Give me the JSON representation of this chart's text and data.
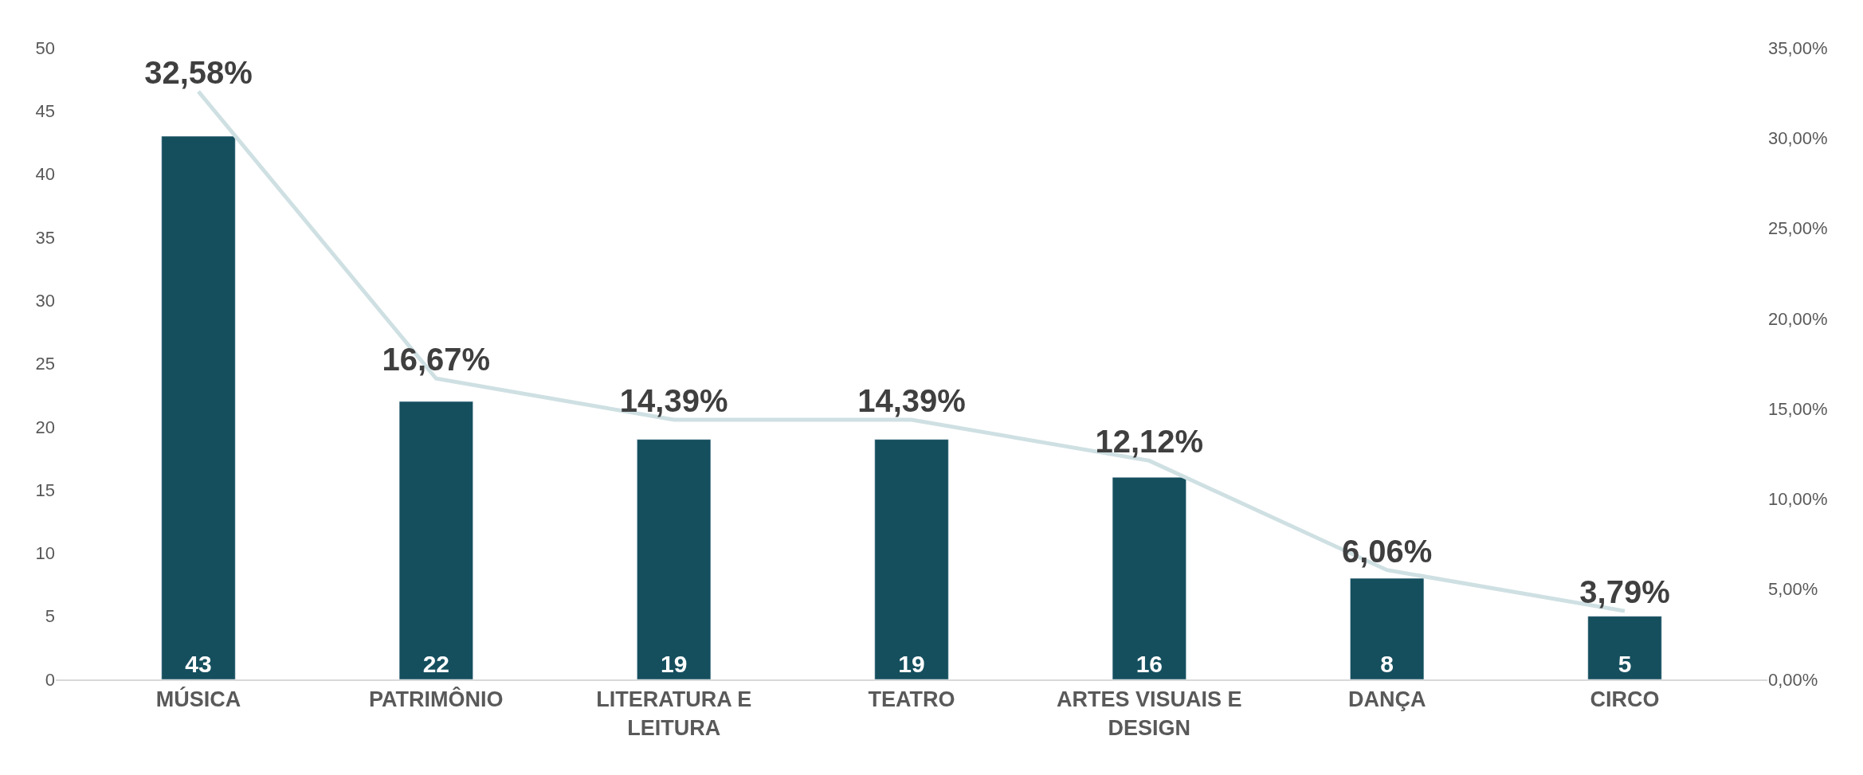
{
  "chart_data": {
    "type": "bar",
    "categories": [
      "MÚSICA",
      "PATRIMÔNIO",
      "LITERATURA E LEITURA",
      "TEATRO",
      "ARTES VISUAIS E DESIGN",
      "DANÇA",
      "CIRCO"
    ],
    "series": [
      {
        "color": "#154f5e",
        "values": [
          43,
          22,
          19,
          19,
          16,
          8,
          5
        ],
        "value_labels": [
          "43",
          "22",
          "19",
          "19",
          "16",
          "8",
          "5"
        ]
      },
      {
        "type": "line",
        "axis": "y2",
        "color": "#cfe0e3",
        "marker": "none",
        "values": [
          32.58,
          16.67,
          14.39,
          14.39,
          12.12,
          6.06,
          3.79
        ],
        "value_labels": [
          "32,58%",
          "16,67%",
          "14,39%",
          "14,39%",
          "12,12%",
          "6,06%",
          "3,79%"
        ]
      }
    ],
    "ylim": [
      0,
      50
    ],
    "yticks": [
      0,
      5,
      10,
      15,
      20,
      25,
      30,
      35,
      40,
      45,
      50
    ],
    "y2lim": [
      0,
      35
    ],
    "y2ticks": [
      {
        "value": 0,
        "label": "0,00%"
      },
      {
        "value": 5,
        "label": "5,00%"
      },
      {
        "value": 10,
        "label": "10,00%"
      },
      {
        "value": 15,
        "label": "15,00%"
      },
      {
        "value": 20,
        "label": "20,00%"
      },
      {
        "value": 25,
        "label": "25,00%"
      },
      {
        "value": 30,
        "label": "30,00%"
      },
      {
        "value": 35,
        "label": "35,00%"
      }
    ],
    "title": null
  }
}
